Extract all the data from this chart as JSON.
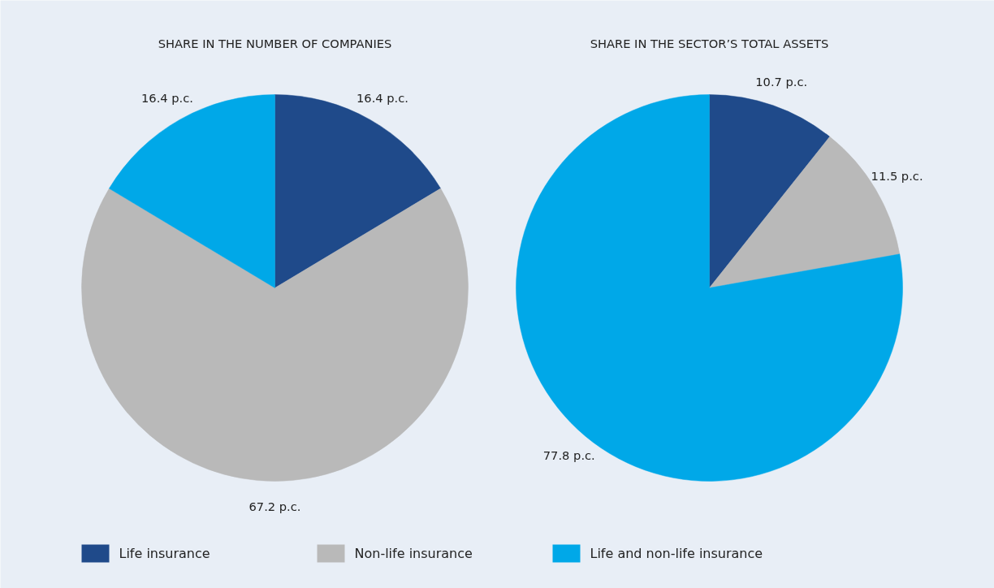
{
  "chart_data": [
    {
      "type": "pie",
      "title": "SHARE IN THE NUMBER OF COMPANIES",
      "categories": [
        "Life insurance",
        "Non-life insurance",
        "Life and non-life insurance"
      ],
      "values": [
        16.4,
        67.2,
        16.4
      ],
      "colors": [
        "#1f4a8a",
        "#b9b9b9",
        "#00a8e8"
      ],
      "value_labels": [
        "16.4 p.c.",
        "67.2 p.c.",
        "16.4 p.c."
      ],
      "legend": "bottom"
    },
    {
      "type": "pie",
      "title": "SHARE IN THE SECTOR’S TOTAL ASSETS",
      "categories": [
        null,
        null,
        null
      ],
      "values": [
        10.7,
        11.5,
        77.8
      ],
      "colors": [
        "#1f4a8a",
        "#b9b9b9",
        "#00a8e8"
      ],
      "value_labels": [
        "10.7 p.c.",
        "11.5 p.c.",
        "77.8 p.c."
      ]
    }
  ]
}
